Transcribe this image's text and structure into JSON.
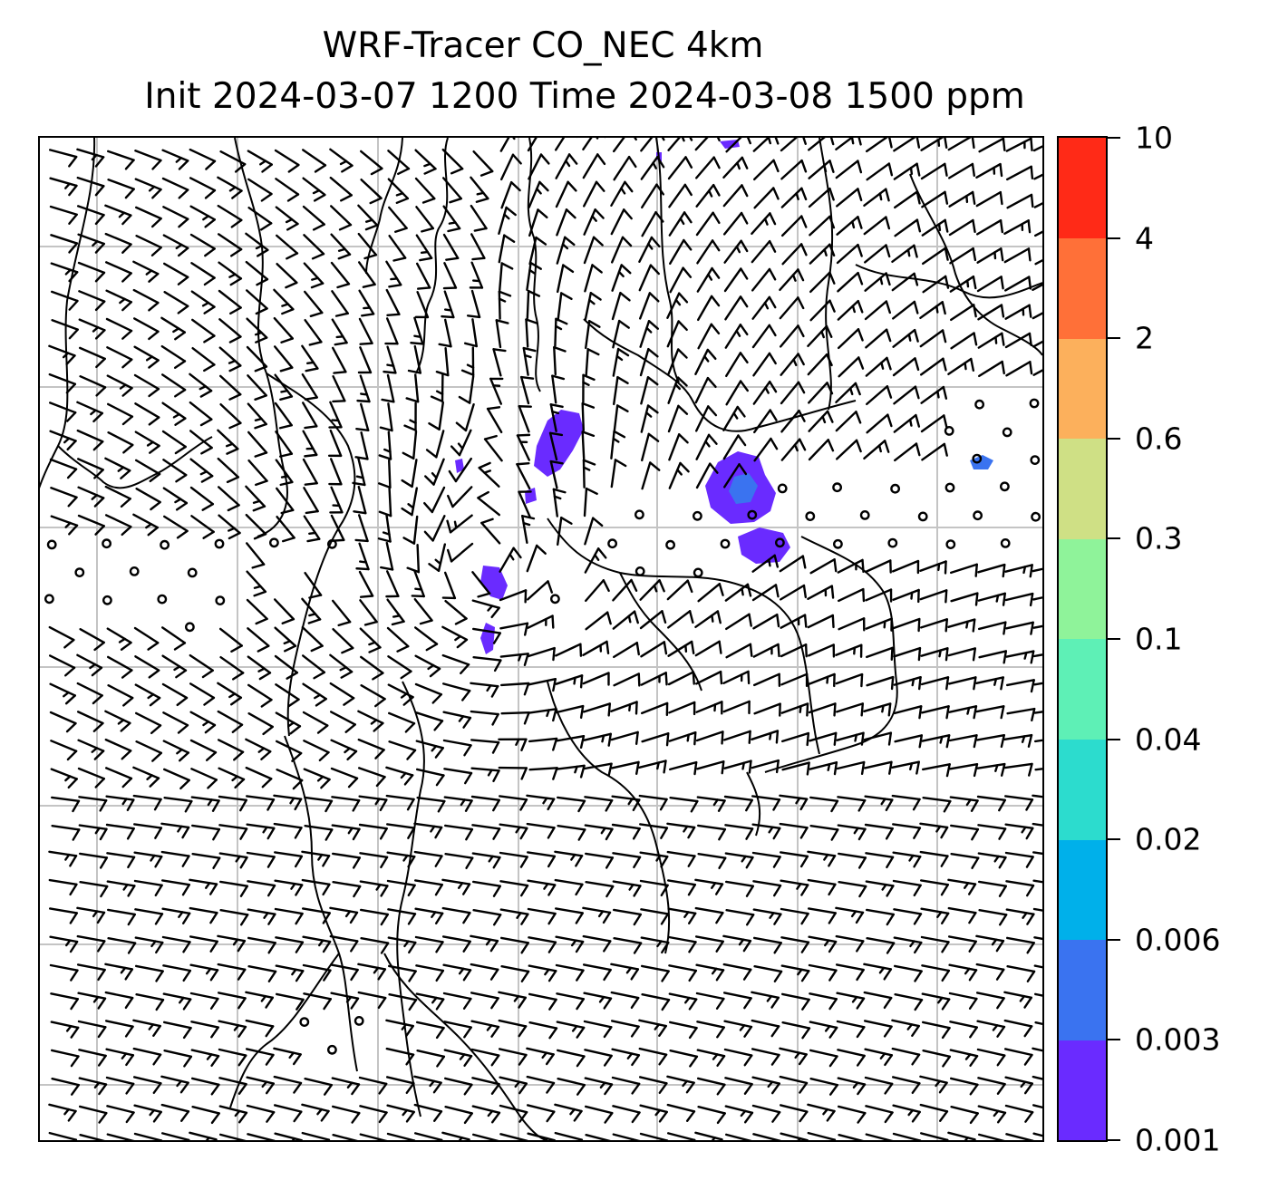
{
  "title": {
    "line1": "WRF-Tracer CO_NEC 4km",
    "line2": "Init 2024-03-07 1200 Time 2024-03-08 1500 ppm"
  },
  "map": {
    "field": "CO_NEC tracer concentration",
    "units": "ppm",
    "overlay": "wind barbs",
    "gridlines": true
  },
  "colorbar": {
    "levels": [
      "0.001",
      "0.003",
      "0.006",
      "0.02",
      "0.04",
      "0.1",
      "0.3",
      "0.6",
      "2",
      "4",
      "10"
    ],
    "colors": [
      "#6a2bff",
      "#3a73f0",
      "#00b0ea",
      "#2cdcce",
      "#5ef0b6",
      "#8ff39a",
      "#cfe085",
      "#fcb05c",
      "#ff7038",
      "#ff2a17"
    ]
  }
}
